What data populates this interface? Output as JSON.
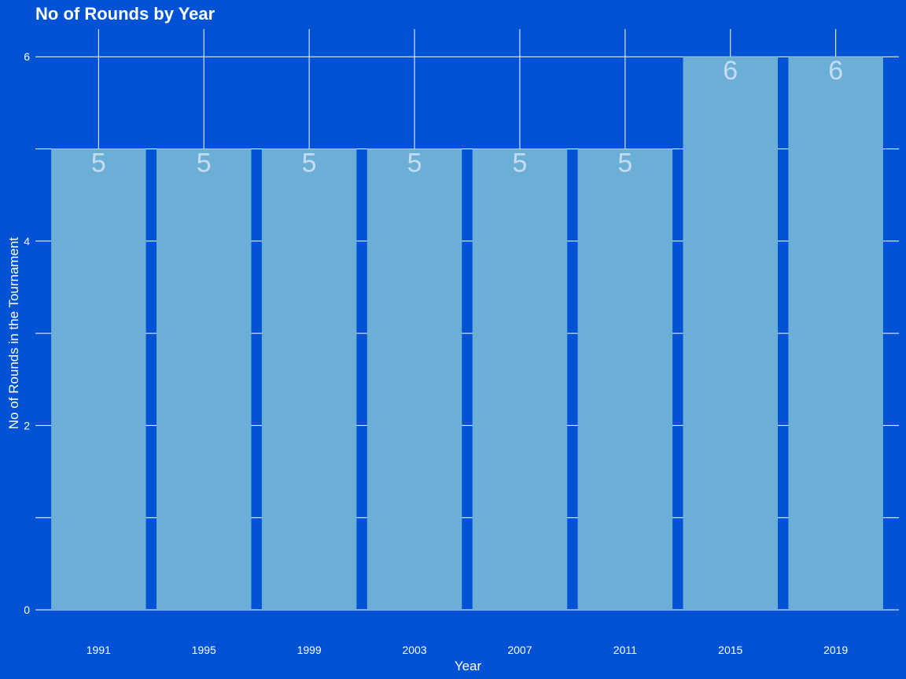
{
  "chart_data": {
    "type": "bar",
    "title": "No of Rounds by Year",
    "xlabel": "Year",
    "ylabel": "No of Rounds in the Tournament",
    "categories": [
      "1991",
      "1995",
      "1999",
      "2003",
      "2007",
      "2011",
      "2015",
      "2019"
    ],
    "values": [
      5,
      5,
      5,
      5,
      5,
      5,
      6,
      6
    ],
    "data_labels": [
      "5",
      "5",
      "5",
      "5",
      "5",
      "5",
      "6",
      "6"
    ],
    "ylim": [
      0,
      6.3
    ],
    "y_major_ticks": [
      0,
      2,
      4,
      6
    ],
    "y_minor_gridlines": [
      1,
      3,
      5
    ],
    "grid": true,
    "legend": "none",
    "colors": {
      "background": "#0052D4",
      "bar": "#6BAED6",
      "grid": "#FFFFFF",
      "text": "#FFFFFF",
      "data_label": "#C6DCF0"
    }
  }
}
